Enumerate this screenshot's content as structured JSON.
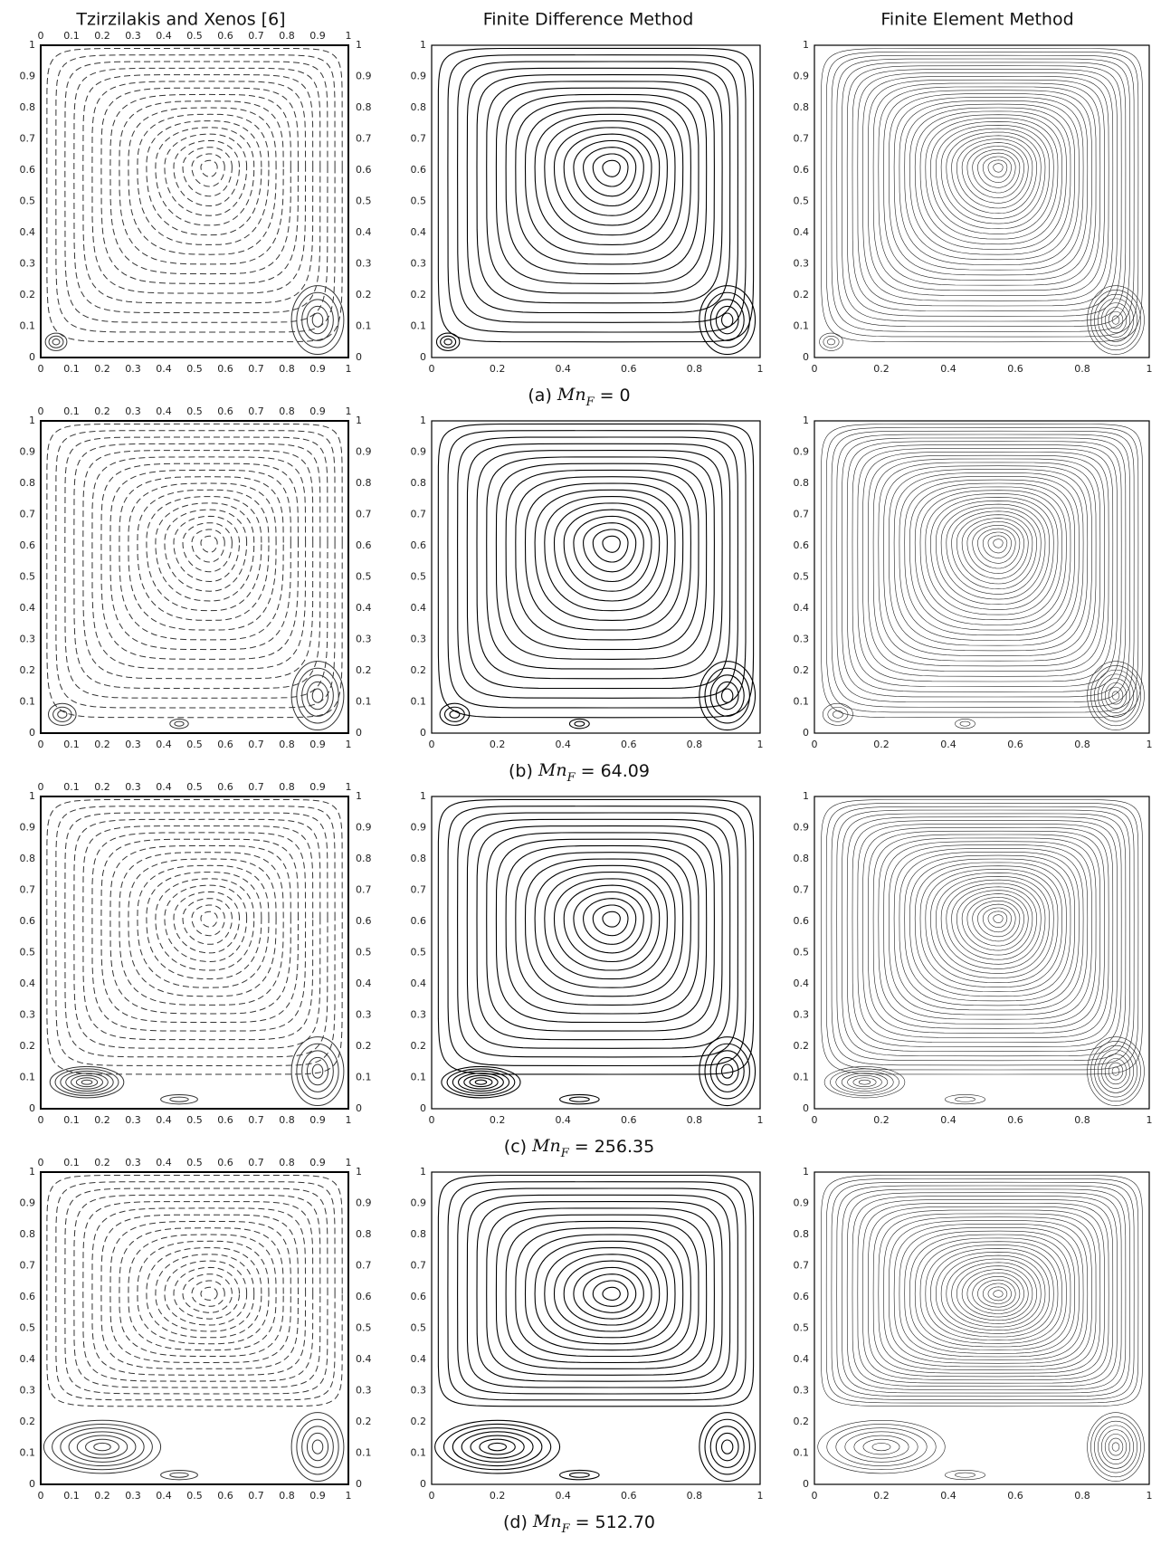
{
  "columns": [
    "Tzirzilakis and Xenos [6]",
    "Finite Difference Method",
    "Finite Element Method"
  ],
  "rows": [
    {
      "label": "(a)",
      "symbol": "Mn",
      "subscript": "F",
      "relation": "=",
      "value": "0"
    },
    {
      "label": "(b)",
      "symbol": "Mn",
      "subscript": "F",
      "relation": "=",
      "value": "64.09"
    },
    {
      "label": "(c)",
      "symbol": "Mn",
      "subscript": "F",
      "relation": "=",
      "value": "256.35"
    },
    {
      "label": "(d)",
      "symbol": "Mn",
      "subscript": "F",
      "relation": "=",
      "value": "512.70"
    }
  ],
  "ticks_fine": [
    "0",
    "0.1",
    "0.2",
    "0.3",
    "0.4",
    "0.5",
    "0.6",
    "0.7",
    "0.8",
    "0.9",
    "1"
  ],
  "ticks_coarse": [
    "0",
    "0.2",
    "0.4",
    "0.6",
    "0.8",
    "1"
  ]
}
